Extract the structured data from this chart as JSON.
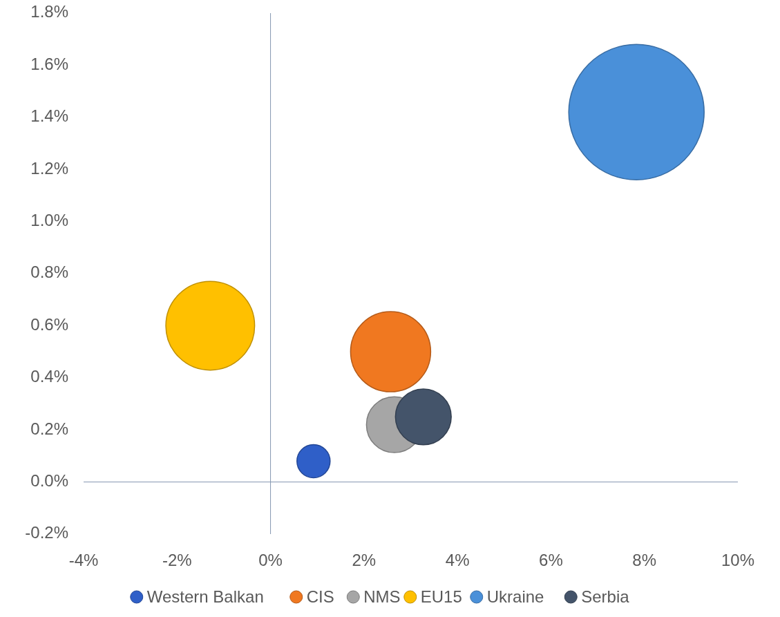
{
  "chart_data": {
    "type": "bubble",
    "xlim": [
      -4,
      10
    ],
    "ylim": [
      -0.2,
      1.8
    ],
    "xticks": [
      {
        "value": -4,
        "label": "-4%"
      },
      {
        "value": -2,
        "label": "-2%"
      },
      {
        "value": 0,
        "label": "0%"
      },
      {
        "value": 2,
        "label": "2%"
      },
      {
        "value": 4,
        "label": "4%"
      },
      {
        "value": 6,
        "label": "6%"
      },
      {
        "value": 8,
        "label": "8%"
      },
      {
        "value": 10,
        "label": "10%"
      }
    ],
    "yticks": [
      {
        "value": -0.2,
        "label": "-0.2%"
      },
      {
        "value": 0,
        "label": "0.0%"
      },
      {
        "value": 0.2,
        "label": "0.2%"
      },
      {
        "value": 0.4,
        "label": "0.4%"
      },
      {
        "value": 0.6,
        "label": "0.6%"
      },
      {
        "value": 0.8,
        "label": "0.8%"
      },
      {
        "value": 1.0,
        "label": "1.0%"
      },
      {
        "value": 1.2,
        "label": "1.2%"
      },
      {
        "value": 1.4,
        "label": "1.4%"
      },
      {
        "value": 1.6,
        "label": "1.6%"
      },
      {
        "value": 1.8,
        "label": "1.8%"
      }
    ],
    "legend": "bottom",
    "series": [
      {
        "name": "Western Balkan",
        "color": "#2f5fc8",
        "x": [
          0.92
        ],
        "values": [
          0.08
        ],
        "sizes": [
          0.06
        ]
      },
      {
        "name": "CIS",
        "color": "#f07820",
        "x": [
          2.57
        ],
        "values": [
          0.5
        ],
        "sizes": [
          0.35
        ]
      },
      {
        "name": "NMS",
        "color": "#a6a6a6",
        "x": [
          2.65
        ],
        "values": [
          0.22
        ],
        "sizes": [
          0.17
        ]
      },
      {
        "name": "EU15",
        "color": "#ffc000",
        "x": [
          -1.29
        ],
        "values": [
          0.6
        ],
        "sizes": [
          0.43
        ]
      },
      {
        "name": "Ukraine",
        "color": "#4a90d9",
        "x": [
          7.83
        ],
        "values": [
          1.42
        ],
        "sizes": [
          1
        ]
      },
      {
        "name": "Serbia",
        "color": "#44546a",
        "x": [
          3.27
        ],
        "values": [
          0.25
        ],
        "sizes": [
          0.17
        ]
      }
    ]
  }
}
